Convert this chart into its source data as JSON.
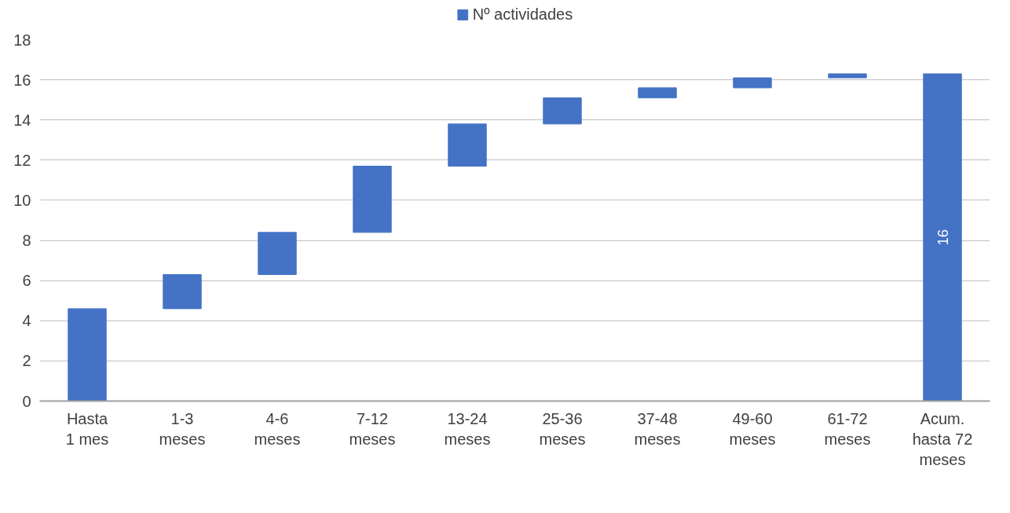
{
  "chart_data": {
    "type": "bar",
    "categories": [
      "Hasta\n1 mes",
      "1-3\nmeses",
      "4-6\nmeses",
      "7-12\nmeses",
      "13-24\nmeses",
      "25-36\nmeses",
      "37-48\nmeses",
      "49-60\nmeses",
      "61-72\nmeses",
      "Acum.\nhasta 72\nmeses"
    ],
    "series": [
      {
        "name": "Nº actividades",
        "color": "#4472c4",
        "base": [
          0,
          4.6,
          6.3,
          8.4,
          11.7,
          13.8,
          15.1,
          15.6,
          16.1,
          0
        ],
        "values": [
          4.6,
          1.7,
          2.1,
          3.3,
          2.1,
          1.3,
          0.5,
          0.5,
          0.2,
          16.3
        ],
        "value_labels": [
          null,
          null,
          null,
          null,
          null,
          null,
          null,
          null,
          null,
          "16"
        ]
      }
    ],
    "ylim": [
      0,
      18
    ],
    "yticks": [
      0,
      2,
      4,
      6,
      8,
      10,
      12,
      14,
      16,
      18
    ],
    "grid": "y",
    "legend": "top"
  }
}
